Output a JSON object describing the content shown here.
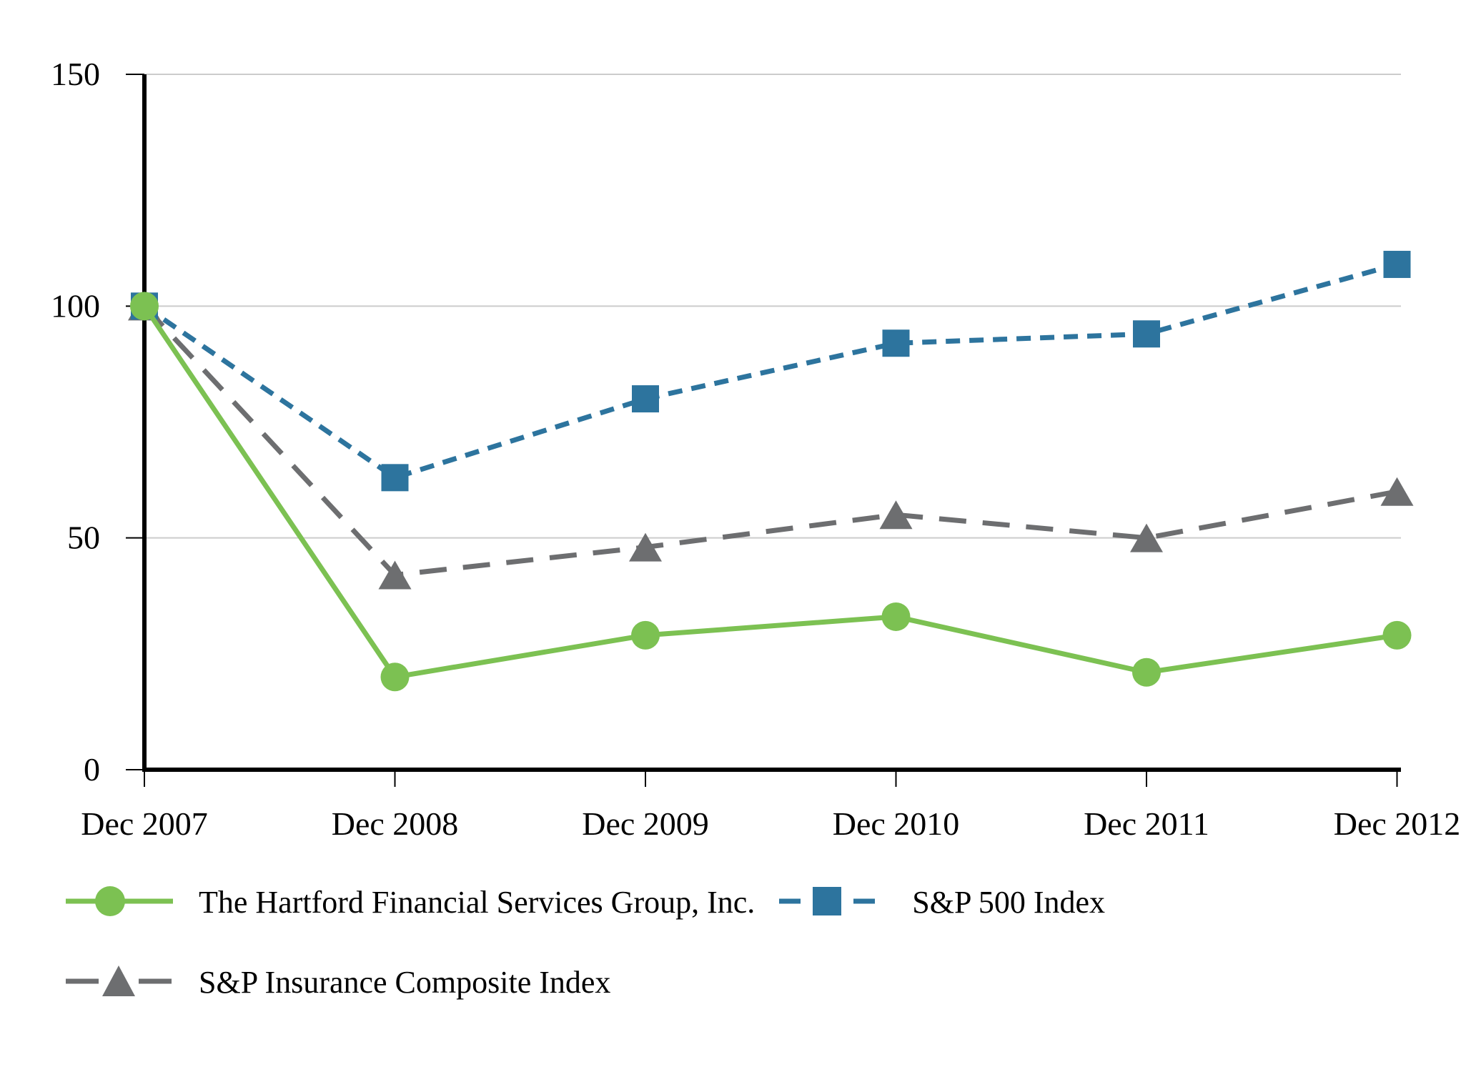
{
  "chart_data": {
    "type": "line",
    "title": "",
    "xlabel": "",
    "ylabel": "",
    "x_labels": [
      "Dec 2007",
      "Dec 2008",
      "Dec 2009",
      "Dec 2010",
      "Dec 2011",
      "Dec 2012"
    ],
    "y_ticks": [
      0,
      50,
      100,
      150
    ],
    "y_tick_labels": [
      "0",
      "50",
      "100",
      "150"
    ],
    "ylim": [
      0,
      150
    ],
    "grid": "horizontal-gridlines-at-50-100-150",
    "legend_position": "bottom-left",
    "series": [
      {
        "name": "The Hartford Financial Services Group, Inc.",
        "marker": "circle",
        "line_style": "solid",
        "color": "#7CC152",
        "values": [
          100,
          20,
          29,
          33,
          21,
          29
        ]
      },
      {
        "name": "S&P 500 Index",
        "marker": "square",
        "line_style": "dashed",
        "color": "#2D749E",
        "values": [
          100,
          63,
          80,
          92,
          94,
          109
        ]
      },
      {
        "name": "S&P Insurance Composite Index",
        "marker": "triangle",
        "line_style": "long-dash",
        "color": "#6D6E70",
        "values": [
          100,
          42,
          48,
          55,
          50,
          60
        ]
      }
    ]
  },
  "colors": {
    "axis": "#000000",
    "gridline": "#CCCCCC",
    "text": "#000000",
    "background": "#FFFFFF"
  }
}
